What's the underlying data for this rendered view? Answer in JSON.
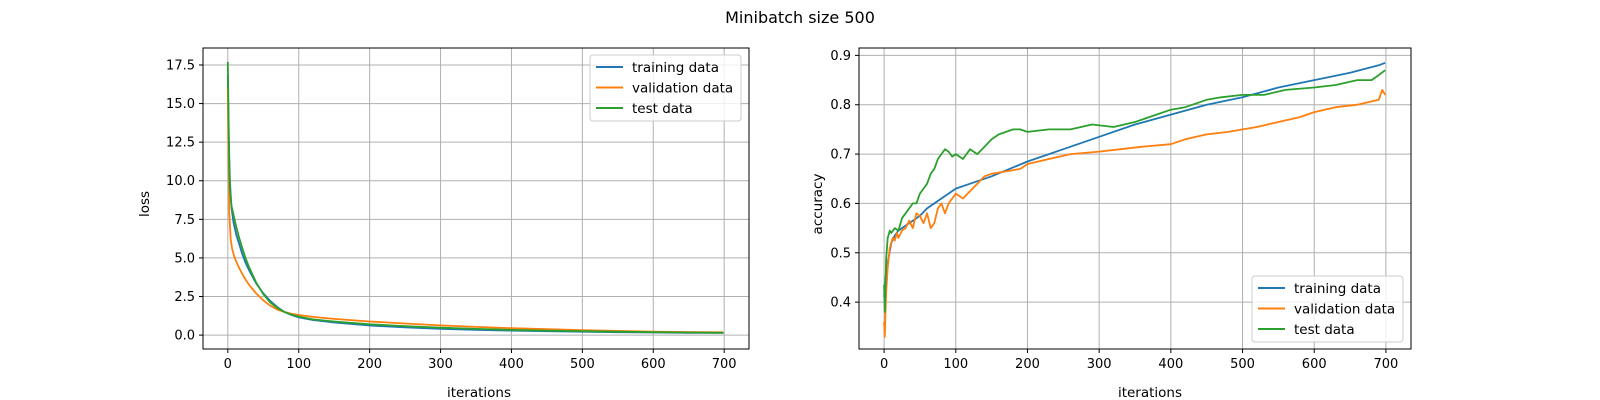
{
  "figure": {
    "title": "Minibatch size 500"
  },
  "colors": {
    "training": "#1f77b4",
    "validation": "#ff7f0e",
    "test": "#2ca02c",
    "grid": "#b0b0b0"
  },
  "chart_data": [
    {
      "id": "loss",
      "type": "line",
      "xlabel": "iterations",
      "ylabel": "loss",
      "xlim": [
        -35,
        735
      ],
      "ylim": [
        -0.9,
        18.6
      ],
      "xticks": [
        0,
        100,
        200,
        300,
        400,
        500,
        600,
        700
      ],
      "yticks": [
        0.0,
        2.5,
        5.0,
        7.5,
        10.0,
        12.5,
        15.0,
        17.5
      ],
      "ytick_labels": [
        "0.0",
        "2.5",
        "5.0",
        "7.5",
        "10.0",
        "12.5",
        "15.0",
        "17.5"
      ],
      "grid": true,
      "legend_position": "upper right",
      "series": [
        {
          "name": "training data",
          "color_key": "training",
          "x": [
            0,
            1,
            3,
            5,
            8,
            12,
            16,
            20,
            25,
            30,
            40,
            50,
            60,
            70,
            80,
            90,
            100,
            120,
            150,
            200,
            250,
            300,
            350,
            400,
            450,
            500,
            550,
            600,
            650,
            699
          ],
          "y": [
            16.9,
            13.5,
            10.0,
            8.3,
            7.3,
            6.5,
            5.9,
            5.3,
            4.7,
            4.2,
            3.35,
            2.7,
            2.2,
            1.8,
            1.5,
            1.3,
            1.15,
            0.98,
            0.82,
            0.62,
            0.5,
            0.41,
            0.34,
            0.29,
            0.25,
            0.22,
            0.19,
            0.17,
            0.15,
            0.14
          ]
        },
        {
          "name": "validation data",
          "color_key": "validation",
          "x": [
            0,
            1,
            2,
            4,
            6,
            9,
            12,
            16,
            20,
            25,
            30,
            40,
            50,
            60,
            70,
            80,
            90,
            100,
            120,
            150,
            200,
            250,
            300,
            350,
            400,
            450,
            500,
            550,
            600,
            650,
            699
          ],
          "y": [
            16.0,
            11.5,
            8.0,
            6.2,
            5.6,
            5.1,
            4.75,
            4.35,
            4.0,
            3.6,
            3.25,
            2.7,
            2.25,
            1.9,
            1.65,
            1.5,
            1.38,
            1.3,
            1.18,
            1.05,
            0.88,
            0.75,
            0.63,
            0.53,
            0.45,
            0.38,
            0.32,
            0.27,
            0.23,
            0.2,
            0.18
          ]
        },
        {
          "name": "test data",
          "color_key": "test",
          "x": [
            0,
            1,
            2,
            3,
            5,
            8,
            12,
            16,
            20,
            25,
            30,
            40,
            50,
            60,
            70,
            80,
            90,
            100,
            120,
            150,
            200,
            250,
            300,
            350,
            400,
            450,
            500,
            550,
            600,
            650,
            699
          ],
          "y": [
            17.7,
            14.5,
            11.0,
            9.5,
            8.4,
            7.8,
            7.0,
            6.3,
            5.7,
            5.0,
            4.4,
            3.4,
            2.65,
            2.1,
            1.75,
            1.5,
            1.32,
            1.2,
            1.02,
            0.88,
            0.7,
            0.58,
            0.48,
            0.4,
            0.34,
            0.29,
            0.25,
            0.22,
            0.19,
            0.17,
            0.15
          ]
        }
      ]
    },
    {
      "id": "accuracy",
      "type": "line",
      "xlabel": "iterations",
      "ylabel": "accuracy",
      "xlim": [
        -35,
        735
      ],
      "ylim": [
        0.305,
        0.915
      ],
      "xticks": [
        0,
        100,
        200,
        300,
        400,
        500,
        600,
        700
      ],
      "yticks": [
        0.4,
        0.5,
        0.6,
        0.7,
        0.8,
        0.9
      ],
      "ytick_labels": [
        "0.4",
        "0.5",
        "0.6",
        "0.7",
        "0.8",
        "0.9"
      ],
      "grid": true,
      "legend_position": "lower right",
      "series": [
        {
          "name": "training data",
          "color_key": "training",
          "x": [
            0,
            2,
            5,
            10,
            15,
            20,
            30,
            40,
            50,
            60,
            70,
            80,
            100,
            120,
            150,
            200,
            250,
            300,
            350,
            400,
            450,
            500,
            550,
            600,
            650,
            690,
            699
          ],
          "y": [
            0.41,
            0.45,
            0.48,
            0.52,
            0.535,
            0.545,
            0.555,
            0.565,
            0.575,
            0.59,
            0.6,
            0.61,
            0.63,
            0.64,
            0.655,
            0.685,
            0.71,
            0.735,
            0.76,
            0.78,
            0.8,
            0.815,
            0.835,
            0.85,
            0.865,
            0.88,
            0.885
          ]
        },
        {
          "name": "validation data",
          "color_key": "validation",
          "x": [
            0,
            1,
            2,
            3,
            5,
            8,
            12,
            15,
            18,
            20,
            25,
            30,
            35,
            40,
            45,
            50,
            55,
            60,
            65,
            70,
            75,
            80,
            85,
            90,
            95,
            100,
            110,
            120,
            130,
            140,
            150,
            170,
            190,
            200,
            230,
            260,
            300,
            330,
            360,
            400,
            420,
            450,
            480,
            500,
            520,
            550,
            580,
            600,
            630,
            660,
            690,
            695,
            699
          ],
          "y": [
            0.36,
            0.33,
            0.38,
            0.42,
            0.47,
            0.51,
            0.53,
            0.525,
            0.54,
            0.53,
            0.545,
            0.55,
            0.565,
            0.55,
            0.58,
            0.575,
            0.56,
            0.58,
            0.55,
            0.56,
            0.59,
            0.6,
            0.58,
            0.6,
            0.61,
            0.62,
            0.61,
            0.625,
            0.64,
            0.655,
            0.66,
            0.665,
            0.67,
            0.68,
            0.69,
            0.7,
            0.705,
            0.71,
            0.715,
            0.72,
            0.73,
            0.74,
            0.745,
            0.75,
            0.755,
            0.765,
            0.775,
            0.785,
            0.795,
            0.8,
            0.81,
            0.83,
            0.82
          ]
        },
        {
          "name": "test data",
          "color_key": "test",
          "x": [
            0,
            1,
            3,
            5,
            8,
            10,
            15,
            20,
            25,
            30,
            35,
            40,
            45,
            50,
            55,
            60,
            65,
            70,
            75,
            80,
            85,
            90,
            95,
            100,
            110,
            120,
            130,
            140,
            150,
            160,
            170,
            180,
            190,
            200,
            230,
            260,
            290,
            320,
            350,
            380,
            400,
            420,
            450,
            470,
            500,
            530,
            560,
            600,
            630,
            660,
            680,
            690,
            699
          ],
          "y": [
            0.435,
            0.38,
            0.49,
            0.53,
            0.545,
            0.54,
            0.55,
            0.545,
            0.57,
            0.58,
            0.59,
            0.6,
            0.6,
            0.62,
            0.63,
            0.64,
            0.66,
            0.67,
            0.69,
            0.7,
            0.71,
            0.705,
            0.695,
            0.7,
            0.69,
            0.71,
            0.7,
            0.715,
            0.73,
            0.74,
            0.745,
            0.75,
            0.75,
            0.745,
            0.75,
            0.75,
            0.76,
            0.755,
            0.765,
            0.78,
            0.79,
            0.795,
            0.81,
            0.815,
            0.82,
            0.82,
            0.83,
            0.835,
            0.84,
            0.85,
            0.85,
            0.86,
            0.87
          ]
        }
      ]
    }
  ]
}
